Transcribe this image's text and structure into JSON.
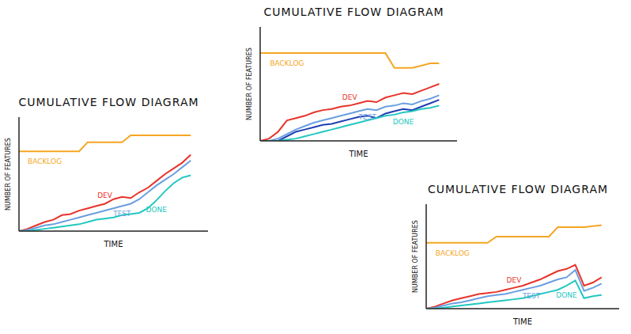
{
  "chart_data": [
    {
      "type": "line",
      "title": "CUMULATIVE FLOW DIAGRAM",
      "x_label": "TIME",
      "y_label": "NUMBER OF FEATURES",
      "x": [
        0,
        1,
        2,
        3,
        4,
        5,
        6,
        7,
        8,
        9,
        10,
        11,
        12,
        13,
        14,
        15,
        16,
        17,
        18,
        19,
        20
      ],
      "xlim": [
        0,
        22
      ],
      "ylim": [
        0,
        100
      ],
      "tick_labels": false,
      "series": [
        {
          "name": "BACKLOG",
          "color": "#f5a623",
          "values": [
            70,
            70,
            70,
            70,
            70,
            70,
            70,
            70,
            78,
            78,
            78,
            78,
            78,
            84,
            84,
            84,
            84,
            84,
            84,
            84,
            84
          ]
        },
        {
          "name": "DEV",
          "color": "#e8332a",
          "values": [
            0,
            2,
            5,
            8,
            10,
            14,
            15,
            18,
            20,
            22,
            24,
            28,
            30,
            29,
            34,
            38,
            44,
            50,
            55,
            60,
            67
          ]
        },
        {
          "name": "TEST",
          "color": "#6a9fe0",
          "values": [
            0,
            1,
            3,
            5,
            6,
            8,
            10,
            12,
            14,
            16,
            18,
            20,
            22,
            24,
            28,
            34,
            40,
            45,
            50,
            56,
            62
          ]
        },
        {
          "name": "DONE",
          "color": "#22c7c0",
          "values": [
            0,
            0,
            1,
            2,
            3,
            4,
            5,
            6,
            8,
            10,
            11,
            12,
            14,
            15,
            16,
            20,
            27,
            35,
            42,
            47,
            49
          ]
        }
      ]
    },
    {
      "type": "line",
      "title": "CUMULATIVE FLOW DIAGRAM",
      "x_label": "TIME",
      "y_label": "NUMBER OF FEATURES",
      "x": [
        0,
        1,
        2,
        3,
        4,
        5,
        6,
        7,
        8,
        9,
        10,
        11,
        12,
        13,
        14,
        15,
        16,
        17,
        18,
        19,
        20
      ],
      "xlim": [
        0,
        22
      ],
      "ylim": [
        0,
        100
      ],
      "tick_labels": false,
      "series": [
        {
          "name": "BACKLOG",
          "color": "#f5a623",
          "values": [
            77,
            77,
            77,
            77,
            77,
            77,
            77,
            77,
            77,
            77,
            77,
            77,
            77,
            77,
            77,
            64,
            64,
            64,
            66,
            68,
            68
          ]
        },
        {
          "name": "DEV",
          "color": "#e8332a",
          "values": [
            0,
            2,
            8,
            18,
            20,
            22,
            25,
            27,
            28,
            30,
            31,
            33,
            35,
            34,
            38,
            40,
            42,
            41,
            44,
            47,
            50
          ]
        },
        {
          "name": "TEST",
          "color": "#6a9fe0",
          "values": [
            0,
            0,
            2,
            6,
            10,
            13,
            16,
            18,
            20,
            22,
            24,
            26,
            28,
            27,
            30,
            31,
            33,
            32,
            35,
            37,
            40
          ]
        },
        {
          "color": "#1f3fb5",
          "values": [
            0,
            0,
            0,
            4,
            8,
            10,
            12,
            14,
            15,
            17,
            19,
            21,
            22,
            20,
            24,
            26,
            28,
            27,
            30,
            33,
            36
          ]
        },
        {
          "name": "DONE",
          "color": "#22c7c0",
          "values": [
            0,
            0,
            0,
            1,
            2,
            4,
            6,
            8,
            10,
            12,
            14,
            16,
            18,
            20,
            22,
            23,
            25,
            26,
            28,
            29,
            31
          ]
        }
      ]
    },
    {
      "type": "line",
      "title": "CUMULATIVE FLOW DIAGRAM",
      "x_label": "TIME",
      "y_label": "NUMBER OF FEATURES",
      "x": [
        0,
        1,
        2,
        3,
        4,
        5,
        6,
        7,
        8,
        9,
        10,
        11,
        12,
        13,
        14,
        15,
        16,
        17,
        18,
        19,
        20
      ],
      "xlim": [
        0,
        22
      ],
      "ylim": [
        0,
        100
      ],
      "tick_labels": false,
      "series": [
        {
          "name": "BACKLOG",
          "color": "#f5a623",
          "values": [
            63,
            63,
            63,
            63,
            63,
            63,
            63,
            63,
            69,
            69,
            69,
            69,
            69,
            69,
            69,
            78,
            78,
            78,
            78,
            79,
            80
          ]
        },
        {
          "name": "DEV",
          "color": "#e8332a",
          "values": [
            0,
            2,
            5,
            8,
            10,
            12,
            14,
            15,
            16,
            18,
            20,
            22,
            25,
            28,
            32,
            36,
            38,
            42,
            22,
            25,
            30
          ]
        },
        {
          "name": "TEST",
          "color": "#6a9fe0",
          "values": [
            0,
            1,
            3,
            5,
            6,
            8,
            10,
            12,
            13,
            14,
            16,
            18,
            20,
            22,
            25,
            28,
            30,
            37,
            17,
            20,
            24
          ]
        },
        {
          "name": "DONE",
          "color": "#22c7c0",
          "values": [
            0,
            0,
            1,
            2,
            3,
            4,
            5,
            6,
            7,
            8,
            9,
            10,
            12,
            14,
            16,
            18,
            22,
            27,
            10,
            12,
            13
          ]
        }
      ]
    }
  ]
}
